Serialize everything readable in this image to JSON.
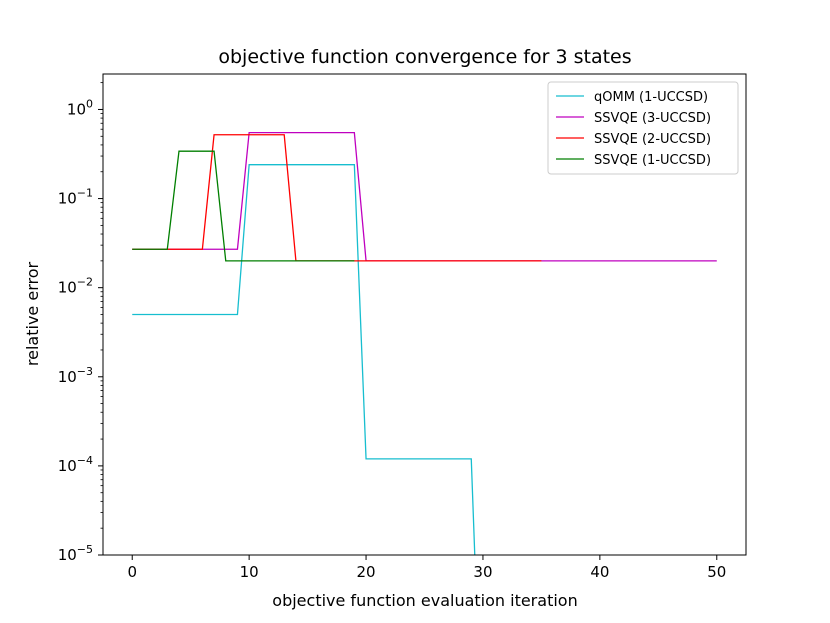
{
  "chart_data": {
    "type": "line",
    "title": "objective function convergence for 3 states",
    "xlabel": "objective function evaluation iteration",
    "ylabel": "relative error",
    "xlim": [
      -2.5,
      52.5
    ],
    "ylim": [
      1e-05,
      2.5
    ],
    "yscale": "log",
    "grid": false,
    "legend_position": "top-right",
    "x_ticks": [
      0,
      10,
      20,
      30,
      40,
      50
    ],
    "x_tick_labels": [
      "0",
      "10",
      "20",
      "30",
      "40",
      "50"
    ],
    "y_ticks": [
      1,
      0.1,
      0.01,
      0.001,
      0.0001,
      1e-05
    ],
    "y_tick_labels": [
      {
        "base": "10",
        "exp": "0"
      },
      {
        "base": "10",
        "exp": "−1"
      },
      {
        "base": "10",
        "exp": "−2"
      },
      {
        "base": "10",
        "exp": "−3"
      },
      {
        "base": "10",
        "exp": "−4"
      },
      {
        "base": "10",
        "exp": "−5"
      }
    ],
    "series": [
      {
        "name": "qOMM (1-UCCSD)",
        "color": "#17becf",
        "x": [
          0,
          9,
          10,
          19,
          20,
          29,
          29.3
        ],
        "y": [
          0.005,
          0.005,
          0.24,
          0.24,
          0.00012,
          0.00012,
          1e-05
        ]
      },
      {
        "name": "SSVQE (3-UCCSD)",
        "color": "#bf00bf",
        "x": [
          0,
          9,
          10,
          19,
          20,
          50
        ],
        "y": [
          0.027,
          0.027,
          0.55,
          0.55,
          0.02,
          0.02
        ]
      },
      {
        "name": "SSVQE (2-UCCSD)",
        "color": "#ff0000",
        "x": [
          0,
          6,
          7,
          13,
          14,
          35
        ],
        "y": [
          0.027,
          0.027,
          0.52,
          0.52,
          0.02,
          0.02
        ]
      },
      {
        "name": "SSVQE (1-UCCSD)",
        "color": "#007f00",
        "x": [
          0,
          3,
          4,
          7,
          8,
          19
        ],
        "y": [
          0.027,
          0.027,
          0.34,
          0.34,
          0.02,
          0.02
        ]
      }
    ]
  }
}
